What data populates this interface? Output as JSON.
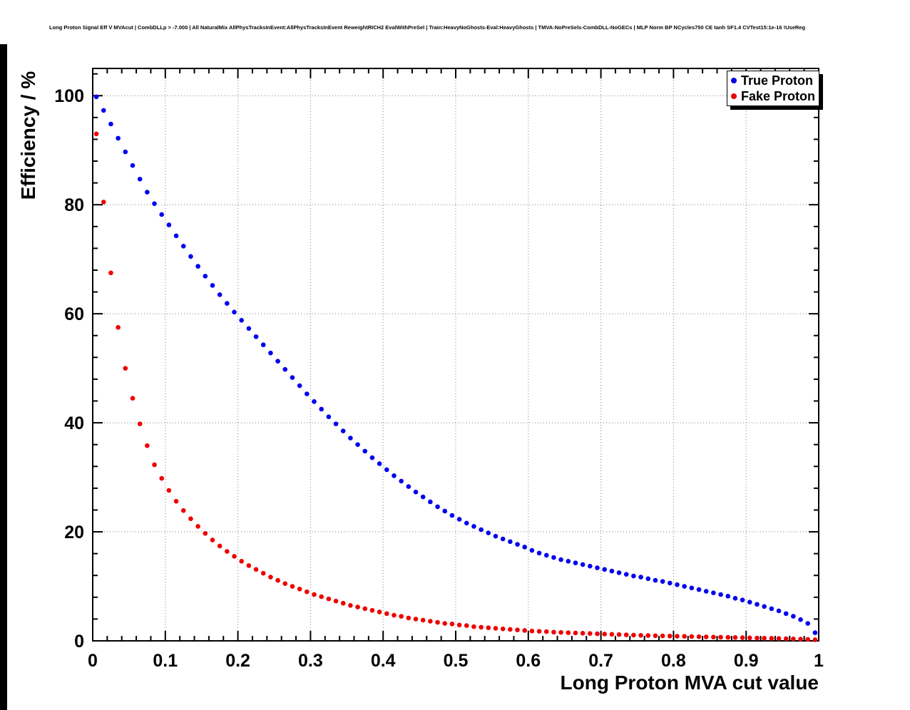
{
  "chart_data": {
    "type": "scatter",
    "title": "Long Proton Signal Eff V MVAcut | CombDLLp > -7.000 | All NaturalMix AllPhysTracksInEvent:AllPhysTracksInEvent ReweightRICH2 EvalWithPreSel | Train:HeavyNoGhosts-Eval:HeavyGhosts | TMVA-NoPreSels-CombDLL-NoGECs | MLP Norm BP NCycles750 CE tanh SF1.4 CVTest15:1e-16 !UseReg",
    "xlabel": "Long Proton MVA cut value",
    "ylabel": "Efficiency / %",
    "xlim": [
      0,
      1
    ],
    "ylim": [
      0,
      105
    ],
    "grid": true,
    "legend_position": "top-right",
    "x_tick_values": [
      0,
      0.1,
      0.2,
      0.3,
      0.4,
      0.5,
      0.6,
      0.7,
      0.8,
      0.9,
      1
    ],
    "x_tick_labels": [
      "0",
      "0.1",
      "0.2",
      "0.3",
      "0.4",
      "0.5",
      "0.6",
      "0.7",
      "0.8",
      "0.9",
      "1"
    ],
    "y_tick_values": [
      0,
      20,
      40,
      60,
      80,
      100
    ],
    "y_tick_labels": [
      "0",
      "20",
      "40",
      "60",
      "80",
      "100"
    ],
    "x_minor_step": 0.02,
    "y_minor_step": 4,
    "x": [
      0.005,
      0.015,
      0.025,
      0.035,
      0.045,
      0.055,
      0.065,
      0.075,
      0.085,
      0.095,
      0.105,
      0.115,
      0.125,
      0.135,
      0.145,
      0.155,
      0.165,
      0.175,
      0.185,
      0.195,
      0.205,
      0.215,
      0.225,
      0.235,
      0.245,
      0.255,
      0.265,
      0.275,
      0.285,
      0.295,
      0.305,
      0.315,
      0.325,
      0.335,
      0.345,
      0.355,
      0.365,
      0.375,
      0.385,
      0.395,
      0.405,
      0.415,
      0.425,
      0.435,
      0.445,
      0.455,
      0.465,
      0.475,
      0.485,
      0.495,
      0.505,
      0.515,
      0.525,
      0.535,
      0.545,
      0.555,
      0.565,
      0.575,
      0.585,
      0.595,
      0.605,
      0.615,
      0.625,
      0.635,
      0.645,
      0.655,
      0.665,
      0.675,
      0.685,
      0.695,
      0.705,
      0.715,
      0.725,
      0.735,
      0.745,
      0.755,
      0.765,
      0.775,
      0.785,
      0.795,
      0.805,
      0.815,
      0.825,
      0.835,
      0.845,
      0.855,
      0.865,
      0.875,
      0.885,
      0.895,
      0.905,
      0.915,
      0.925,
      0.935,
      0.945,
      0.955,
      0.965,
      0.975,
      0.985,
      0.995
    ],
    "series": [
      {
        "name": "True Proton",
        "color": "#0000ee",
        "marker": "circle",
        "values": [
          99.8,
          97.3,
          94.8,
          92.2,
          89.7,
          87.2,
          84.7,
          82.3,
          80.2,
          78.2,
          76.3,
          74.3,
          72.4,
          70.5,
          68.7,
          66.9,
          65.2,
          63.5,
          61.9,
          60.3,
          58.8,
          57.3,
          55.8,
          54.3,
          52.8,
          51.3,
          49.8,
          48.3,
          46.8,
          45.3,
          43.9,
          42.5,
          41.1,
          39.8,
          38.5,
          37.2,
          36.0,
          34.8,
          33.6,
          32.5,
          31.4,
          30.3,
          29.3,
          28.3,
          27.3,
          26.4,
          25.5,
          24.6,
          23.8,
          23.0,
          22.3,
          21.6,
          21.0,
          20.4,
          19.8,
          19.2,
          18.7,
          18.2,
          17.7,
          17.2,
          16.6,
          16.1,
          15.7,
          15.3,
          14.9,
          14.6,
          14.3,
          14.0,
          13.7,
          13.4,
          13.1,
          12.8,
          12.5,
          12.2,
          11.9,
          11.7,
          11.4,
          11.1,
          10.9,
          10.6,
          10.3,
          10.0,
          9.7,
          9.4,
          9.1,
          8.8,
          8.5,
          8.2,
          7.8,
          7.5,
          7.1,
          6.7,
          6.3,
          5.9,
          5.5,
          5.0,
          4.5,
          3.9,
          3.2,
          1.5
        ]
      },
      {
        "name": "Fake Proton",
        "color": "#ee0000",
        "marker": "circle",
        "values": [
          93.0,
          80.5,
          67.5,
          57.5,
          50.0,
          44.5,
          39.8,
          35.8,
          32.3,
          29.8,
          27.6,
          25.6,
          23.9,
          22.4,
          21.0,
          19.7,
          18.5,
          17.4,
          16.4,
          15.5,
          14.6,
          13.8,
          13.1,
          12.4,
          11.7,
          11.1,
          10.5,
          10.0,
          9.5,
          9.0,
          8.5,
          8.1,
          7.7,
          7.3,
          6.9,
          6.5,
          6.2,
          5.9,
          5.6,
          5.3,
          5.0,
          4.7,
          4.5,
          4.2,
          4.0,
          3.8,
          3.6,
          3.4,
          3.2,
          3.1,
          2.9,
          2.8,
          2.6,
          2.5,
          2.4,
          2.3,
          2.2,
          2.1,
          2.0,
          1.9,
          1.8,
          1.75,
          1.7,
          1.6,
          1.55,
          1.5,
          1.45,
          1.4,
          1.35,
          1.3,
          1.25,
          1.2,
          1.15,
          1.1,
          1.05,
          1.0,
          0.97,
          0.94,
          0.91,
          0.88,
          0.85,
          0.82,
          0.79,
          0.76,
          0.73,
          0.7,
          0.67,
          0.64,
          0.61,
          0.58,
          0.55,
          0.52,
          0.49,
          0.46,
          0.43,
          0.4,
          0.36,
          0.32,
          0.27,
          0.2
        ]
      }
    ]
  }
}
